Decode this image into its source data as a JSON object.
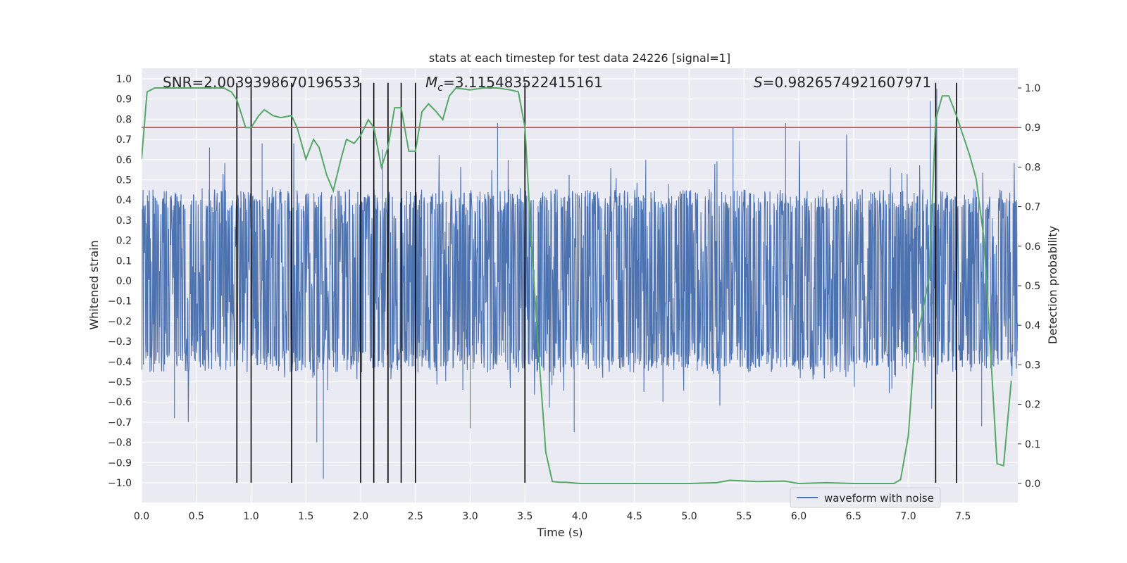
{
  "chart_data": {
    "type": "line",
    "title": "stats at each timestep for test data 24226 [signal=1]",
    "xlabel": "Time (s)",
    "ylabel": "Whitened strain",
    "ylabel_right": "Detection probability",
    "xlim": [
      0,
      8.0
    ],
    "ylim": [
      -1.1,
      1.05
    ],
    "ylim_right": [
      -0.048,
      1.045
    ],
    "x_ticks": [
      "0.0",
      "0.5",
      "1.0",
      "1.5",
      "2.0",
      "2.5",
      "3.0",
      "3.5",
      "4.0",
      "4.5",
      "5.0",
      "5.5",
      "6.0",
      "6.5",
      "7.0",
      "7.5"
    ],
    "y_ticks": [
      "1.0",
      "0.9",
      "0.8",
      "0.7",
      "0.6",
      "0.5",
      "0.4",
      "0.3",
      "0.2",
      "0.1",
      "0.0",
      "−0.1",
      "−0.2",
      "−0.3",
      "−0.4",
      "−0.5",
      "−0.6",
      "−0.7",
      "−0.8",
      "−0.9",
      "−1.0"
    ],
    "y_ticks_right": [
      "1.0",
      "0.9",
      "0.8",
      "0.7",
      "0.6",
      "0.5",
      "0.4",
      "0.3",
      "0.2",
      "0.1",
      "0.0"
    ],
    "annotations": {
      "snr": "SNR=2.0039398670196533",
      "mc_symbol": "M",
      "mc_sub": "c",
      "mc_value": "=3.115483522415161",
      "s_symbol": "S",
      "s_value": "=0.9826574921607971"
    },
    "legend": {
      "label": "waveform with noise",
      "position": "lower-right"
    },
    "threshold": {
      "value": 0.9,
      "axis": "right",
      "color": "#c44e52"
    },
    "trigger_times": [
      0.87,
      1.0,
      1.37,
      2.0,
      2.12,
      2.25,
      2.37,
      2.5,
      3.5,
      7.25,
      7.44
    ],
    "series": [
      {
        "name": "waveform with noise",
        "axis": "left",
        "color": "#4c72b0",
        "envelope_x": [
          0.0,
          8.0
        ],
        "typical_range": [
          -0.42,
          0.42
        ],
        "peaks": [
          [
            0.87,
            0.87
          ],
          [
            0.62,
            0.66
          ],
          [
            1.1,
            0.68
          ],
          [
            1.66,
            -0.98
          ],
          [
            1.6,
            -0.8
          ],
          [
            2.2,
            0.65
          ],
          [
            3.25,
            0.78
          ],
          [
            3.95,
            -0.75
          ],
          [
            5.4,
            0.76
          ],
          [
            5.88,
            0.78
          ],
          [
            7.2,
            0.89
          ],
          [
            7.26,
            0.95
          ],
          [
            7.67,
            -0.72
          ],
          [
            0.3,
            -0.68
          ],
          [
            3.0,
            -0.73
          ]
        ]
      },
      {
        "name": "detection probability",
        "axis": "right",
        "color": "#55a868",
        "x": [
          0.0,
          0.05,
          0.12,
          0.25,
          0.5,
          0.62,
          0.75,
          0.82,
          0.87,
          0.95,
          1.0,
          1.07,
          1.12,
          1.2,
          1.27,
          1.37,
          1.42,
          1.5,
          1.57,
          1.62,
          1.69,
          1.75,
          1.82,
          1.87,
          1.94,
          2.0,
          2.07,
          2.12,
          2.19,
          2.25,
          2.31,
          2.37,
          2.44,
          2.5,
          2.56,
          2.62,
          2.69,
          2.75,
          2.81,
          2.87,
          3.0,
          3.12,
          3.25,
          3.37,
          3.44,
          3.5,
          3.56,
          3.62,
          3.69,
          3.75,
          3.81,
          3.87,
          4.0,
          4.25,
          4.5,
          5.0,
          5.25,
          5.37,
          5.62,
          5.87,
          6.0,
          6.25,
          6.5,
          6.75,
          6.87,
          6.93,
          7.0,
          7.06,
          7.12,
          7.19,
          7.25,
          7.31,
          7.37,
          7.44,
          7.5,
          7.56,
          7.62,
          7.69,
          7.75,
          7.81,
          7.87,
          7.94
        ],
        "y": [
          0.82,
          0.99,
          1.0,
          1.0,
          1.0,
          1.0,
          1.0,
          0.99,
          0.97,
          0.9,
          0.9,
          0.93,
          0.945,
          0.93,
          0.925,
          0.93,
          0.9,
          0.82,
          0.87,
          0.85,
          0.78,
          0.74,
          0.82,
          0.87,
          0.86,
          0.88,
          0.92,
          0.9,
          0.8,
          0.85,
          0.95,
          0.95,
          0.84,
          0.84,
          0.94,
          0.96,
          0.94,
          0.92,
          0.98,
          1.0,
          0.995,
          1.0,
          1.0,
          0.995,
          0.99,
          0.9,
          0.6,
          0.35,
          0.08,
          0.005,
          0.003,
          0.003,
          0.0,
          0.0,
          0.0,
          0.0,
          0.002,
          0.008,
          0.005,
          0.006,
          0.0,
          0.002,
          0.0,
          0.0,
          0.0,
          0.01,
          0.12,
          0.35,
          0.42,
          0.52,
          0.92,
          0.98,
          0.98,
          0.93,
          0.88,
          0.83,
          0.77,
          0.62,
          0.34,
          0.05,
          0.045,
          0.26
        ]
      }
    ]
  }
}
